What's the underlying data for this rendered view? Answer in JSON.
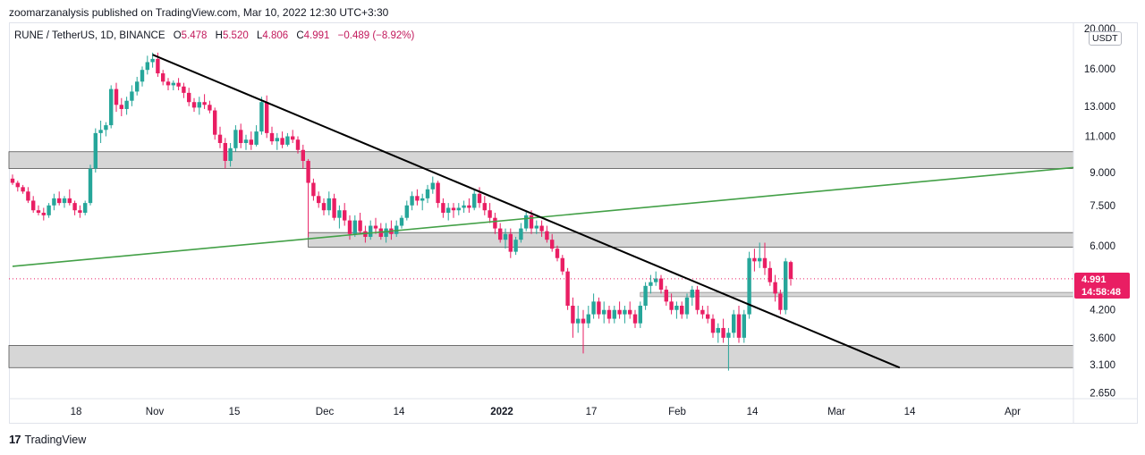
{
  "publisher": "zoomarzanalysis published on TradingView.com, Mar 10, 2022 12:30 UTC+3:30",
  "legend": {
    "symbol": "RUNE / TetherUS, 1D, BINANCE",
    "open_label": "O",
    "open": "5.478",
    "high_label": "H",
    "high": "5.520",
    "low_label": "L",
    "low": "4.806",
    "close_label": "C",
    "close": "4.991",
    "change": "−0.489 (−8.92%)"
  },
  "currency": "USDT",
  "last_price": {
    "value": "4.991",
    "countdown": "14:58:48",
    "color": "#e91e63"
  },
  "footer": {
    "logo": "17",
    "brand": "TradingView"
  },
  "colors": {
    "up": "#26a69a",
    "down": "#e91e63",
    "zone": "#d6d6d6",
    "trendline": "#000000",
    "support_line": "#43a047"
  },
  "chart_data": {
    "type": "candlestick",
    "scale": "log",
    "y_ticks": [
      "20.000",
      "16.000",
      "13.000",
      "11.000",
      "9.000",
      "7.500",
      "6.000",
      "4.200",
      "3.600",
      "3.100",
      "2.650"
    ],
    "x_ticks": [
      "18",
      "Nov",
      "15",
      "Dec",
      "14",
      "2022",
      "17",
      "Feb",
      "14",
      "Mar",
      "14",
      "Apr"
    ],
    "candles": [
      {
        "o": 8.7,
        "h": 8.9,
        "l": 8.4,
        "c": 8.5
      },
      {
        "o": 8.5,
        "h": 8.6,
        "l": 8.1,
        "c": 8.3
      },
      {
        "o": 8.3,
        "h": 8.4,
        "l": 8.0,
        "c": 8.1
      },
      {
        "o": 8.1,
        "h": 8.3,
        "l": 7.6,
        "c": 7.7
      },
      {
        "o": 7.7,
        "h": 7.9,
        "l": 7.2,
        "c": 7.3
      },
      {
        "o": 7.3,
        "h": 7.5,
        "l": 7.1,
        "c": 7.2
      },
      {
        "o": 7.2,
        "h": 7.4,
        "l": 6.9,
        "c": 7.1
      },
      {
        "o": 7.1,
        "h": 7.6,
        "l": 7.0,
        "c": 7.5
      },
      {
        "o": 7.5,
        "h": 8.0,
        "l": 7.3,
        "c": 7.8
      },
      {
        "o": 7.8,
        "h": 8.1,
        "l": 7.5,
        "c": 7.6
      },
      {
        "o": 7.6,
        "h": 7.9,
        "l": 7.4,
        "c": 7.8
      },
      {
        "o": 7.8,
        "h": 8.2,
        "l": 7.5,
        "c": 7.6
      },
      {
        "o": 7.6,
        "h": 7.7,
        "l": 7.1,
        "c": 7.3
      },
      {
        "o": 7.3,
        "h": 7.5,
        "l": 7.0,
        "c": 7.2
      },
      {
        "o": 7.2,
        "h": 7.7,
        "l": 7.1,
        "c": 7.6
      },
      {
        "o": 7.6,
        "h": 9.4,
        "l": 7.5,
        "c": 9.2
      },
      {
        "o": 9.2,
        "h": 11.5,
        "l": 9.0,
        "c": 11.2
      },
      {
        "o": 11.2,
        "h": 12.0,
        "l": 10.6,
        "c": 11.4
      },
      {
        "o": 11.4,
        "h": 11.9,
        "l": 11.0,
        "c": 11.7
      },
      {
        "o": 11.7,
        "h": 14.6,
        "l": 11.5,
        "c": 14.3
      },
      {
        "o": 14.3,
        "h": 14.8,
        "l": 12.6,
        "c": 13.1
      },
      {
        "o": 13.1,
        "h": 13.6,
        "l": 12.3,
        "c": 12.8
      },
      {
        "o": 12.8,
        "h": 13.7,
        "l": 12.4,
        "c": 13.4
      },
      {
        "o": 13.4,
        "h": 14.6,
        "l": 13.0,
        "c": 14.1
      },
      {
        "o": 14.1,
        "h": 15.3,
        "l": 13.8,
        "c": 14.9
      },
      {
        "o": 14.9,
        "h": 16.2,
        "l": 14.5,
        "c": 15.9
      },
      {
        "o": 15.9,
        "h": 17.2,
        "l": 15.5,
        "c": 16.6
      },
      {
        "o": 16.6,
        "h": 17.5,
        "l": 16.1,
        "c": 16.9
      },
      {
        "o": 16.9,
        "h": 17.5,
        "l": 15.3,
        "c": 15.6
      },
      {
        "o": 15.6,
        "h": 15.9,
        "l": 14.6,
        "c": 14.9
      },
      {
        "o": 14.9,
        "h": 15.2,
        "l": 14.2,
        "c": 14.6
      },
      {
        "o": 14.6,
        "h": 15.0,
        "l": 14.2,
        "c": 14.8
      },
      {
        "o": 14.8,
        "h": 15.2,
        "l": 14.2,
        "c": 14.5
      },
      {
        "o": 14.5,
        "h": 14.8,
        "l": 13.6,
        "c": 14.0
      },
      {
        "o": 14.0,
        "h": 14.4,
        "l": 13.0,
        "c": 13.3
      },
      {
        "o": 13.3,
        "h": 13.6,
        "l": 12.6,
        "c": 12.9
      },
      {
        "o": 12.9,
        "h": 13.7,
        "l": 12.4,
        "c": 13.3
      },
      {
        "o": 13.3,
        "h": 13.9,
        "l": 12.8,
        "c": 13.1
      },
      {
        "o": 13.1,
        "h": 13.4,
        "l": 12.5,
        "c": 12.7
      },
      {
        "o": 12.7,
        "h": 12.9,
        "l": 10.8,
        "c": 11.1
      },
      {
        "o": 11.1,
        "h": 11.6,
        "l": 10.3,
        "c": 10.6
      },
      {
        "o": 10.6,
        "h": 10.9,
        "l": 9.2,
        "c": 9.6
      },
      {
        "o": 9.6,
        "h": 10.6,
        "l": 9.3,
        "c": 10.3
      },
      {
        "o": 10.3,
        "h": 11.7,
        "l": 10.1,
        "c": 11.4
      },
      {
        "o": 11.4,
        "h": 11.8,
        "l": 10.3,
        "c": 10.6
      },
      {
        "o": 10.6,
        "h": 11.1,
        "l": 10.2,
        "c": 10.8
      },
      {
        "o": 10.8,
        "h": 11.3,
        "l": 10.2,
        "c": 10.5
      },
      {
        "o": 10.5,
        "h": 11.7,
        "l": 10.4,
        "c": 11.3
      },
      {
        "o": 11.3,
        "h": 13.7,
        "l": 11.1,
        "c": 13.3
      },
      {
        "o": 13.3,
        "h": 13.8,
        "l": 10.9,
        "c": 11.2
      },
      {
        "o": 11.2,
        "h": 11.6,
        "l": 10.5,
        "c": 10.7
      },
      {
        "o": 10.7,
        "h": 11.2,
        "l": 10.2,
        "c": 10.9
      },
      {
        "o": 10.9,
        "h": 11.3,
        "l": 10.3,
        "c": 10.5
      },
      {
        "o": 10.5,
        "h": 11.2,
        "l": 10.4,
        "c": 11.0
      },
      {
        "o": 11.0,
        "h": 11.4,
        "l": 10.6,
        "c": 10.8
      },
      {
        "o": 10.8,
        "h": 11.0,
        "l": 10.0,
        "c": 10.2
      },
      {
        "o": 10.2,
        "h": 10.5,
        "l": 9.2,
        "c": 9.6
      },
      {
        "o": 9.6,
        "h": 9.7,
        "l": 6.3,
        "c": 8.5
      },
      {
        "o": 8.5,
        "h": 8.7,
        "l": 7.7,
        "c": 7.9
      },
      {
        "o": 7.9,
        "h": 8.1,
        "l": 7.4,
        "c": 7.6
      },
      {
        "o": 7.6,
        "h": 7.8,
        "l": 7.1,
        "c": 7.3
      },
      {
        "o": 7.3,
        "h": 8.1,
        "l": 7.1,
        "c": 7.8
      },
      {
        "o": 7.8,
        "h": 8.0,
        "l": 6.9,
        "c": 7.0
      },
      {
        "o": 7.0,
        "h": 7.5,
        "l": 6.6,
        "c": 7.3
      },
      {
        "o": 7.3,
        "h": 7.6,
        "l": 6.7,
        "c": 6.9
      },
      {
        "o": 6.9,
        "h": 7.1,
        "l": 6.2,
        "c": 6.4
      },
      {
        "o": 6.4,
        "h": 7.1,
        "l": 6.3,
        "c": 6.9
      },
      {
        "o": 6.9,
        "h": 7.2,
        "l": 6.4,
        "c": 6.5
      },
      {
        "o": 6.5,
        "h": 6.7,
        "l": 6.1,
        "c": 6.3
      },
      {
        "o": 6.3,
        "h": 6.9,
        "l": 6.2,
        "c": 6.7
      },
      {
        "o": 6.7,
        "h": 7.0,
        "l": 6.4,
        "c": 6.6
      },
      {
        "o": 6.6,
        "h": 6.8,
        "l": 6.2,
        "c": 6.3
      },
      {
        "o": 6.3,
        "h": 6.8,
        "l": 6.1,
        "c": 6.6
      },
      {
        "o": 6.6,
        "h": 6.9,
        "l": 6.2,
        "c": 6.4
      },
      {
        "o": 6.4,
        "h": 6.9,
        "l": 6.3,
        "c": 6.7
      },
      {
        "o": 6.7,
        "h": 7.1,
        "l": 6.6,
        "c": 7.0
      },
      {
        "o": 7.0,
        "h": 7.7,
        "l": 6.9,
        "c": 7.5
      },
      {
        "o": 7.5,
        "h": 8.1,
        "l": 7.3,
        "c": 7.9
      },
      {
        "o": 7.9,
        "h": 8.2,
        "l": 7.5,
        "c": 7.7
      },
      {
        "o": 7.7,
        "h": 8.0,
        "l": 7.3,
        "c": 7.8
      },
      {
        "o": 7.8,
        "h": 8.4,
        "l": 7.6,
        "c": 8.2
      },
      {
        "o": 8.2,
        "h": 8.8,
        "l": 8.0,
        "c": 8.5
      },
      {
        "o": 8.5,
        "h": 8.6,
        "l": 7.4,
        "c": 7.6
      },
      {
        "o": 7.6,
        "h": 7.8,
        "l": 7.0,
        "c": 7.2
      },
      {
        "o": 7.2,
        "h": 7.6,
        "l": 6.9,
        "c": 7.4
      },
      {
        "o": 7.4,
        "h": 7.6,
        "l": 7.0,
        "c": 7.3
      },
      {
        "o": 7.3,
        "h": 7.6,
        "l": 7.1,
        "c": 7.4
      },
      {
        "o": 7.4,
        "h": 7.7,
        "l": 7.2,
        "c": 7.5
      },
      {
        "o": 7.5,
        "h": 7.8,
        "l": 7.2,
        "c": 7.4
      },
      {
        "o": 7.4,
        "h": 8.2,
        "l": 7.3,
        "c": 8.0
      },
      {
        "o": 8.0,
        "h": 8.3,
        "l": 7.4,
        "c": 7.6
      },
      {
        "o": 7.6,
        "h": 7.9,
        "l": 7.1,
        "c": 7.3
      },
      {
        "o": 7.3,
        "h": 7.6,
        "l": 6.8,
        "c": 7.0
      },
      {
        "o": 7.0,
        "h": 7.2,
        "l": 6.4,
        "c": 6.6
      },
      {
        "o": 6.6,
        "h": 6.8,
        "l": 6.1,
        "c": 6.2
      },
      {
        "o": 6.2,
        "h": 6.6,
        "l": 5.9,
        "c": 6.4
      },
      {
        "o": 6.4,
        "h": 6.6,
        "l": 5.6,
        "c": 5.8
      },
      {
        "o": 5.8,
        "h": 6.3,
        "l": 5.7,
        "c": 6.2
      },
      {
        "o": 6.2,
        "h": 6.8,
        "l": 6.1,
        "c": 6.6
      },
      {
        "o": 6.6,
        "h": 7.3,
        "l": 6.5,
        "c": 7.1
      },
      {
        "o": 7.1,
        "h": 7.3,
        "l": 6.4,
        "c": 6.6
      },
      {
        "o": 6.6,
        "h": 6.9,
        "l": 6.4,
        "c": 6.7
      },
      {
        "o": 6.7,
        "h": 6.9,
        "l": 6.3,
        "c": 6.5
      },
      {
        "o": 6.5,
        "h": 6.7,
        "l": 6.1,
        "c": 6.2
      },
      {
        "o": 6.2,
        "h": 6.4,
        "l": 5.8,
        "c": 5.9
      },
      {
        "o": 5.9,
        "h": 6.0,
        "l": 5.5,
        "c": 5.6
      },
      {
        "o": 5.6,
        "h": 5.7,
        "l": 5.1,
        "c": 5.2
      },
      {
        "o": 5.2,
        "h": 5.3,
        "l": 4.2,
        "c": 4.3
      },
      {
        "o": 4.3,
        "h": 4.5,
        "l": 3.6,
        "c": 3.9
      },
      {
        "o": 3.9,
        "h": 4.3,
        "l": 3.7,
        "c": 4.0
      },
      {
        "o": 4.0,
        "h": 4.2,
        "l": 3.3,
        "c": 3.9
      },
      {
        "o": 3.9,
        "h": 4.3,
        "l": 3.8,
        "c": 4.1
      },
      {
        "o": 4.1,
        "h": 4.6,
        "l": 4.0,
        "c": 4.4
      },
      {
        "o": 4.4,
        "h": 4.5,
        "l": 4.0,
        "c": 4.1
      },
      {
        "o": 4.1,
        "h": 4.4,
        "l": 3.9,
        "c": 4.2
      },
      {
        "o": 4.2,
        "h": 4.3,
        "l": 3.9,
        "c": 4.0
      },
      {
        "o": 4.0,
        "h": 4.3,
        "l": 3.9,
        "c": 4.2
      },
      {
        "o": 4.2,
        "h": 4.4,
        "l": 4.0,
        "c": 4.1
      },
      {
        "o": 4.1,
        "h": 4.3,
        "l": 3.9,
        "c": 4.2
      },
      {
        "o": 4.2,
        "h": 4.4,
        "l": 4.0,
        "c": 4.1
      },
      {
        "o": 4.1,
        "h": 4.2,
        "l": 3.8,
        "c": 3.9
      },
      {
        "o": 3.9,
        "h": 4.4,
        "l": 3.8,
        "c": 4.3
      },
      {
        "o": 4.3,
        "h": 4.9,
        "l": 4.2,
        "c": 4.8
      },
      {
        "o": 4.8,
        "h": 5.1,
        "l": 4.6,
        "c": 4.9
      },
      {
        "o": 4.9,
        "h": 5.2,
        "l": 4.8,
        "c": 5.0
      },
      {
        "o": 5.0,
        "h": 5.1,
        "l": 4.6,
        "c": 4.7
      },
      {
        "o": 4.7,
        "h": 4.8,
        "l": 4.3,
        "c": 4.4
      },
      {
        "o": 4.4,
        "h": 4.6,
        "l": 4.1,
        "c": 4.2
      },
      {
        "o": 4.2,
        "h": 4.4,
        "l": 4.0,
        "c": 4.3
      },
      {
        "o": 4.3,
        "h": 4.4,
        "l": 4.0,
        "c": 4.1
      },
      {
        "o": 4.1,
        "h": 4.6,
        "l": 4.0,
        "c": 4.5
      },
      {
        "o": 4.5,
        "h": 4.8,
        "l": 4.3,
        "c": 4.7
      },
      {
        "o": 4.7,
        "h": 4.8,
        "l": 4.1,
        "c": 4.2
      },
      {
        "o": 4.2,
        "h": 4.3,
        "l": 4.0,
        "c": 4.1
      },
      {
        "o": 4.1,
        "h": 4.3,
        "l": 3.9,
        "c": 4.0
      },
      {
        "o": 4.0,
        "h": 4.1,
        "l": 3.6,
        "c": 3.7
      },
      {
        "o": 3.7,
        "h": 3.9,
        "l": 3.5,
        "c": 3.8
      },
      {
        "o": 3.8,
        "h": 4.0,
        "l": 3.5,
        "c": 3.6
      },
      {
        "o": 3.6,
        "h": 3.8,
        "l": 3.0,
        "c": 3.7
      },
      {
        "o": 3.7,
        "h": 4.2,
        "l": 3.6,
        "c": 4.1
      },
      {
        "o": 4.1,
        "h": 4.3,
        "l": 3.5,
        "c": 3.6
      },
      {
        "o": 3.6,
        "h": 4.2,
        "l": 3.5,
        "c": 4.1
      },
      {
        "o": 4.1,
        "h": 5.8,
        "l": 4.0,
        "c": 5.6
      },
      {
        "o": 5.6,
        "h": 5.9,
        "l": 5.2,
        "c": 5.5
      },
      {
        "o": 5.5,
        "h": 6.1,
        "l": 5.3,
        "c": 5.6
      },
      {
        "o": 5.6,
        "h": 6.1,
        "l": 5.1,
        "c": 5.3
      },
      {
        "o": 5.3,
        "h": 5.5,
        "l": 4.8,
        "c": 4.9
      },
      {
        "o": 4.9,
        "h": 5.1,
        "l": 4.4,
        "c": 4.6
      },
      {
        "o": 4.6,
        "h": 4.7,
        "l": 4.1,
        "c": 4.2
      },
      {
        "o": 4.2,
        "h": 5.6,
        "l": 4.1,
        "c": 5.5
      },
      {
        "o": 5.478,
        "h": 5.52,
        "l": 4.806,
        "c": 4.991
      }
    ],
    "zones": [
      {
        "y1": 9.2,
        "y2": 10.1,
        "x_from": 0,
        "x_to": "end"
      },
      {
        "y1": 5.95,
        "y2": 6.45,
        "x_from": 57,
        "x_to": "end"
      },
      {
        "y1": 3.05,
        "y2": 3.45,
        "x_from": 0,
        "x_to": "end"
      }
    ],
    "thin_zone": {
      "y1": 4.52,
      "y2": 4.63,
      "x_from": 121,
      "x_to": "end"
    },
    "trendline": {
      "from": {
        "i": 27,
        "price": 17.3
      },
      "to": {
        "i": 171,
        "price": 3.05
      }
    },
    "green_line": {
      "from": {
        "i": 0,
        "price": 5.35
      },
      "to": {
        "i": 185,
        "price": 9.25
      }
    }
  }
}
